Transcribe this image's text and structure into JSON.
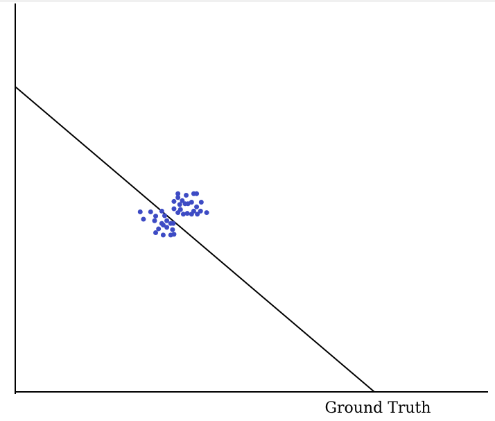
{
  "chart_data": {
    "type": "scatter",
    "xlabel": "Ground Truth",
    "ylabel": "",
    "title": "",
    "xlim": [
      0,
      100
    ],
    "ylim": [
      0,
      100
    ],
    "grid": false,
    "point_color": "#3d4bc4",
    "line": {
      "x": [
        0,
        100
      ],
      "y": [
        79,
        0
      ]
    },
    "points": [
      {
        "x": 45.3,
        "y": 51.3
      },
      {
        "x": 47.6,
        "y": 50.9
      },
      {
        "x": 49.7,
        "y": 51.3
      },
      {
        "x": 50.5,
        "y": 51.3
      },
      {
        "x": 45.3,
        "y": 50.3
      },
      {
        "x": 46.5,
        "y": 49.5
      },
      {
        "x": 44.2,
        "y": 49.3
      },
      {
        "x": 47.3,
        "y": 48.7
      },
      {
        "x": 49.1,
        "y": 49.1
      },
      {
        "x": 51.8,
        "y": 49.1
      },
      {
        "x": 45.8,
        "y": 48.5
      },
      {
        "x": 48.1,
        "y": 48.7
      },
      {
        "x": 50.5,
        "y": 47.9
      },
      {
        "x": 44.2,
        "y": 47.4
      },
      {
        "x": 46.0,
        "y": 47.2
      },
      {
        "x": 47.9,
        "y": 46.2
      },
      {
        "x": 49.7,
        "y": 46.8
      },
      {
        "x": 51.6,
        "y": 46.8
      },
      {
        "x": 53.3,
        "y": 46.4
      },
      {
        "x": 45.3,
        "y": 46.4
      },
      {
        "x": 46.8,
        "y": 46.0
      },
      {
        "x": 49.1,
        "y": 46.0
      },
      {
        "x": 50.7,
        "y": 46.0
      },
      {
        "x": 34.8,
        "y": 46.6
      },
      {
        "x": 37.7,
        "y": 46.6
      },
      {
        "x": 40.8,
        "y": 46.8
      },
      {
        "x": 39.1,
        "y": 45.5
      },
      {
        "x": 41.6,
        "y": 45.6
      },
      {
        "x": 35.7,
        "y": 44.7
      },
      {
        "x": 38.8,
        "y": 44.3
      },
      {
        "x": 42.2,
        "y": 44.3
      },
      {
        "x": 43.3,
        "y": 43.6
      },
      {
        "x": 41.2,
        "y": 43.2
      },
      {
        "x": 44.0,
        "y": 43.6
      },
      {
        "x": 42.2,
        "y": 42.6
      },
      {
        "x": 43.8,
        "y": 42.0
      },
      {
        "x": 39.9,
        "y": 42.2
      },
      {
        "x": 40.8,
        "y": 43.6
      },
      {
        "x": 44.2,
        "y": 40.8
      },
      {
        "x": 39.1,
        "y": 41.2
      },
      {
        "x": 41.2,
        "y": 40.6
      },
      {
        "x": 43.3,
        "y": 40.6
      }
    ]
  }
}
